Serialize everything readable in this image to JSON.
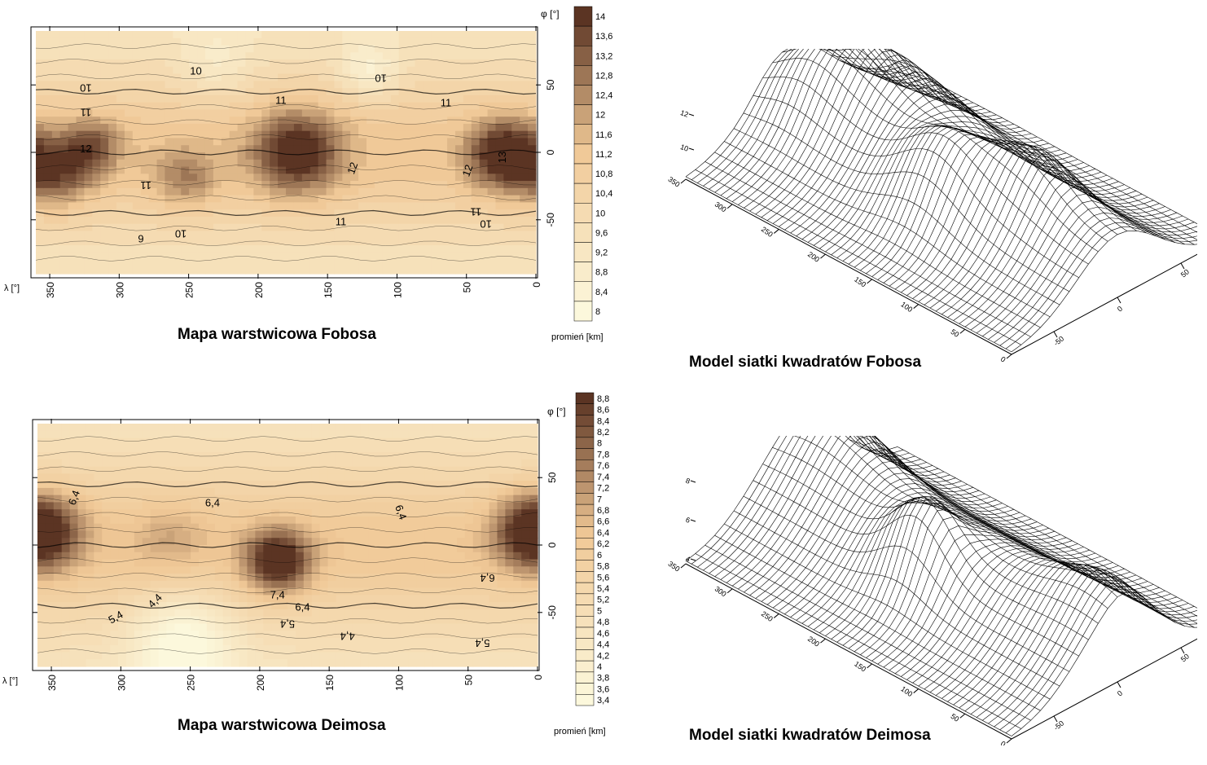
{
  "colors": {
    "low": "#fcf8dc",
    "mid": "#f0c896",
    "high": "#5b3423",
    "line": "#000000",
    "mesh_bg": "#ffffff"
  },
  "chart_data": [
    {
      "id": "phobos-contour",
      "type": "heatmap",
      "title": "Mapa warstwicowa Fobosa",
      "xlabel": "λ [°]",
      "ylabel": "φ [°]",
      "x_ticks": [
        "350",
        "300",
        "250",
        "200",
        "150",
        "100",
        "50",
        "0"
      ],
      "y_ticks": [
        "50",
        "0",
        "-50"
      ],
      "xlim": [
        360,
        0
      ],
      "ylim": [
        -90,
        90
      ],
      "colorbar": {
        "label": "promień [km]",
        "ticks": [
          "14",
          "13,6",
          "13,2",
          "12,8",
          "12,4",
          "12",
          "11,6",
          "11,2",
          "10,8",
          "10,4",
          "10",
          "9,6",
          "9,2",
          "8,8",
          "8,4",
          "8"
        ],
        "range": [
          8,
          14
        ]
      },
      "contour_labels": [
        "10",
        "10",
        "10",
        "11",
        "11",
        "11",
        "11",
        "11",
        "12",
        "12",
        "12",
        "13",
        "6",
        "10",
        "11",
        "10"
      ],
      "features": [
        {
          "lon": 172,
          "lat": 0,
          "value": 13.6,
          "spread": 22
        },
        {
          "lon": 22,
          "lat": -2,
          "value": 14.0,
          "spread": 18
        },
        {
          "lon": 345,
          "lat": -15,
          "value": 12.6,
          "spread": 18
        },
        {
          "lon": 320,
          "lat": 5,
          "value": 12.2,
          "spread": 15
        },
        {
          "lon": 252,
          "lat": -20,
          "value": 11.8,
          "spread": 16
        },
        {
          "lon": 120,
          "lat": 60,
          "value": 8.6,
          "spread": 14
        },
        {
          "lon": 230,
          "lat": 65,
          "value": 9.2,
          "spread": 18
        }
      ]
    },
    {
      "id": "deimos-contour",
      "type": "heatmap",
      "title": "Mapa warstwicowa Deimosa",
      "xlabel": "λ [°]",
      "ylabel": "φ [°]",
      "x_ticks": [
        "350",
        "300",
        "250",
        "200",
        "150",
        "100",
        "50",
        "0"
      ],
      "y_ticks": [
        "50",
        "0",
        "-50"
      ],
      "xlim": [
        360,
        0
      ],
      "ylim": [
        -90,
        90
      ],
      "colorbar": {
        "label": "promień [km]",
        "ticks": [
          "8,8",
          "8,6",
          "8,4",
          "8,2",
          "8",
          "7,8",
          "7,6",
          "7,4",
          "7,2",
          "7",
          "6,8",
          "6,6",
          "6,4",
          "6,2",
          "6",
          "5,8",
          "5,6",
          "5,4",
          "5,2",
          "5",
          "4,8",
          "4,6",
          "4,4",
          "4,2",
          "4",
          "3,8",
          "3,6",
          "3,4"
        ],
        "range": [
          3.4,
          8.8
        ]
      },
      "contour_labels": [
        "6,4",
        "6,4",
        "6,4",
        "6,4",
        "7,4",
        "6,4",
        "5,4",
        "4,4",
        "5,4",
        "4,4",
        "5,4"
      ],
      "features": [
        {
          "lon": 187,
          "lat": -12,
          "value": 8.8,
          "spread": 16
        },
        {
          "lon": 355,
          "lat": 10,
          "value": 7.4,
          "spread": 20
        },
        {
          "lon": 5,
          "lat": 10,
          "value": 7.4,
          "spread": 18
        },
        {
          "lon": 265,
          "lat": 5,
          "value": 6.0,
          "spread": 18
        },
        {
          "lon": 255,
          "lat": -70,
          "value": 3.4,
          "spread": 25
        }
      ]
    },
    {
      "id": "phobos-mesh",
      "type": "surface",
      "title": "Model siatki kwadratów Fobosa",
      "x_ticks": [
        "350",
        "300",
        "250",
        "200",
        "150",
        "100",
        "50",
        "0"
      ],
      "y_ticks": [
        "-50",
        "0",
        "50"
      ],
      "z_ticks": [
        "12",
        "10"
      ]
    },
    {
      "id": "deimos-mesh",
      "type": "surface",
      "title": "Model siatki kwadratów Deimosa",
      "x_ticks": [
        "350",
        "300",
        "250",
        "200",
        "150",
        "100",
        "50",
        "0"
      ],
      "y_ticks": [
        "-50",
        "0",
        "50"
      ],
      "z_ticks": [
        "8",
        "6",
        "4"
      ]
    }
  ]
}
